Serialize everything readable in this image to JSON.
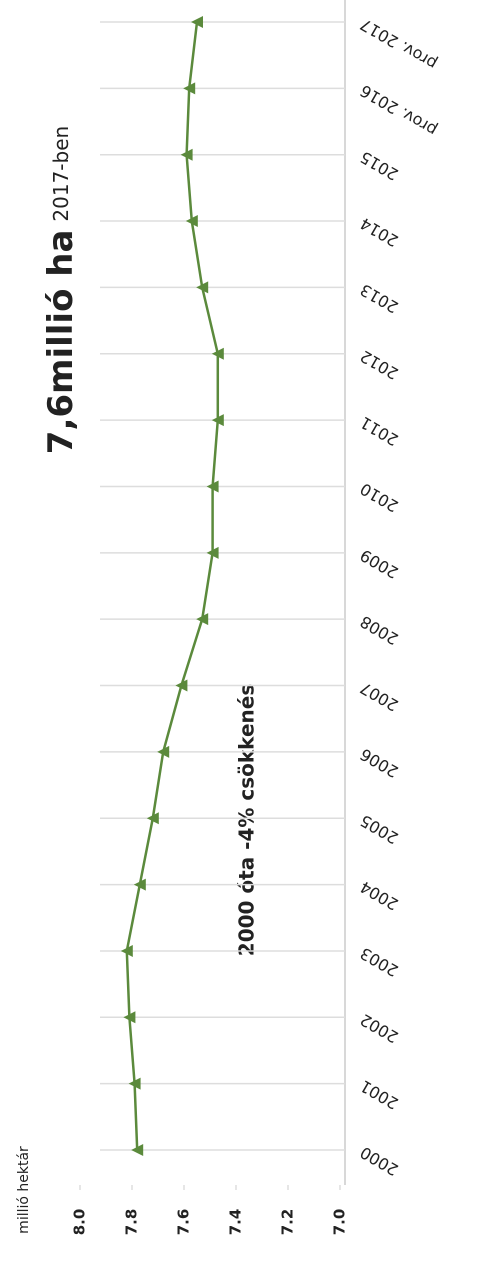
{
  "chart_data": {
    "type": "line",
    "title": "7,6millió ha",
    "title_suffix": "2017-ben",
    "annotation": "2000 óta -4% csökkenés",
    "y_label": "millió hektár",
    "categories": [
      "2000",
      "2001",
      "2002",
      "2003",
      "2004",
      "2005",
      "2006",
      "2007",
      "2008",
      "2009",
      "2010",
      "2011",
      "2012",
      "2013",
      "2014",
      "2015",
      "prov. 2016",
      "prov. 2017"
    ],
    "series": [
      {
        "name": "millió hektár",
        "color": "#5b8a3c",
        "values": [
          7.78,
          7.79,
          7.81,
          7.82,
          7.77,
          7.72,
          7.68,
          7.61,
          7.53,
          7.49,
          7.49,
          7.47,
          7.47,
          7.53,
          7.57,
          7.59,
          7.58,
          7.55
        ]
      }
    ],
    "ylim": [
      7.0,
      8.0
    ],
    "yticks": [
      {
        "value": 8.0,
        "label": "8.0"
      },
      7.8,
      7.6,
      7.4,
      7.2,
      {
        "value": 7.0,
        "label": "7.0"
      }
    ],
    "grid": true
  }
}
